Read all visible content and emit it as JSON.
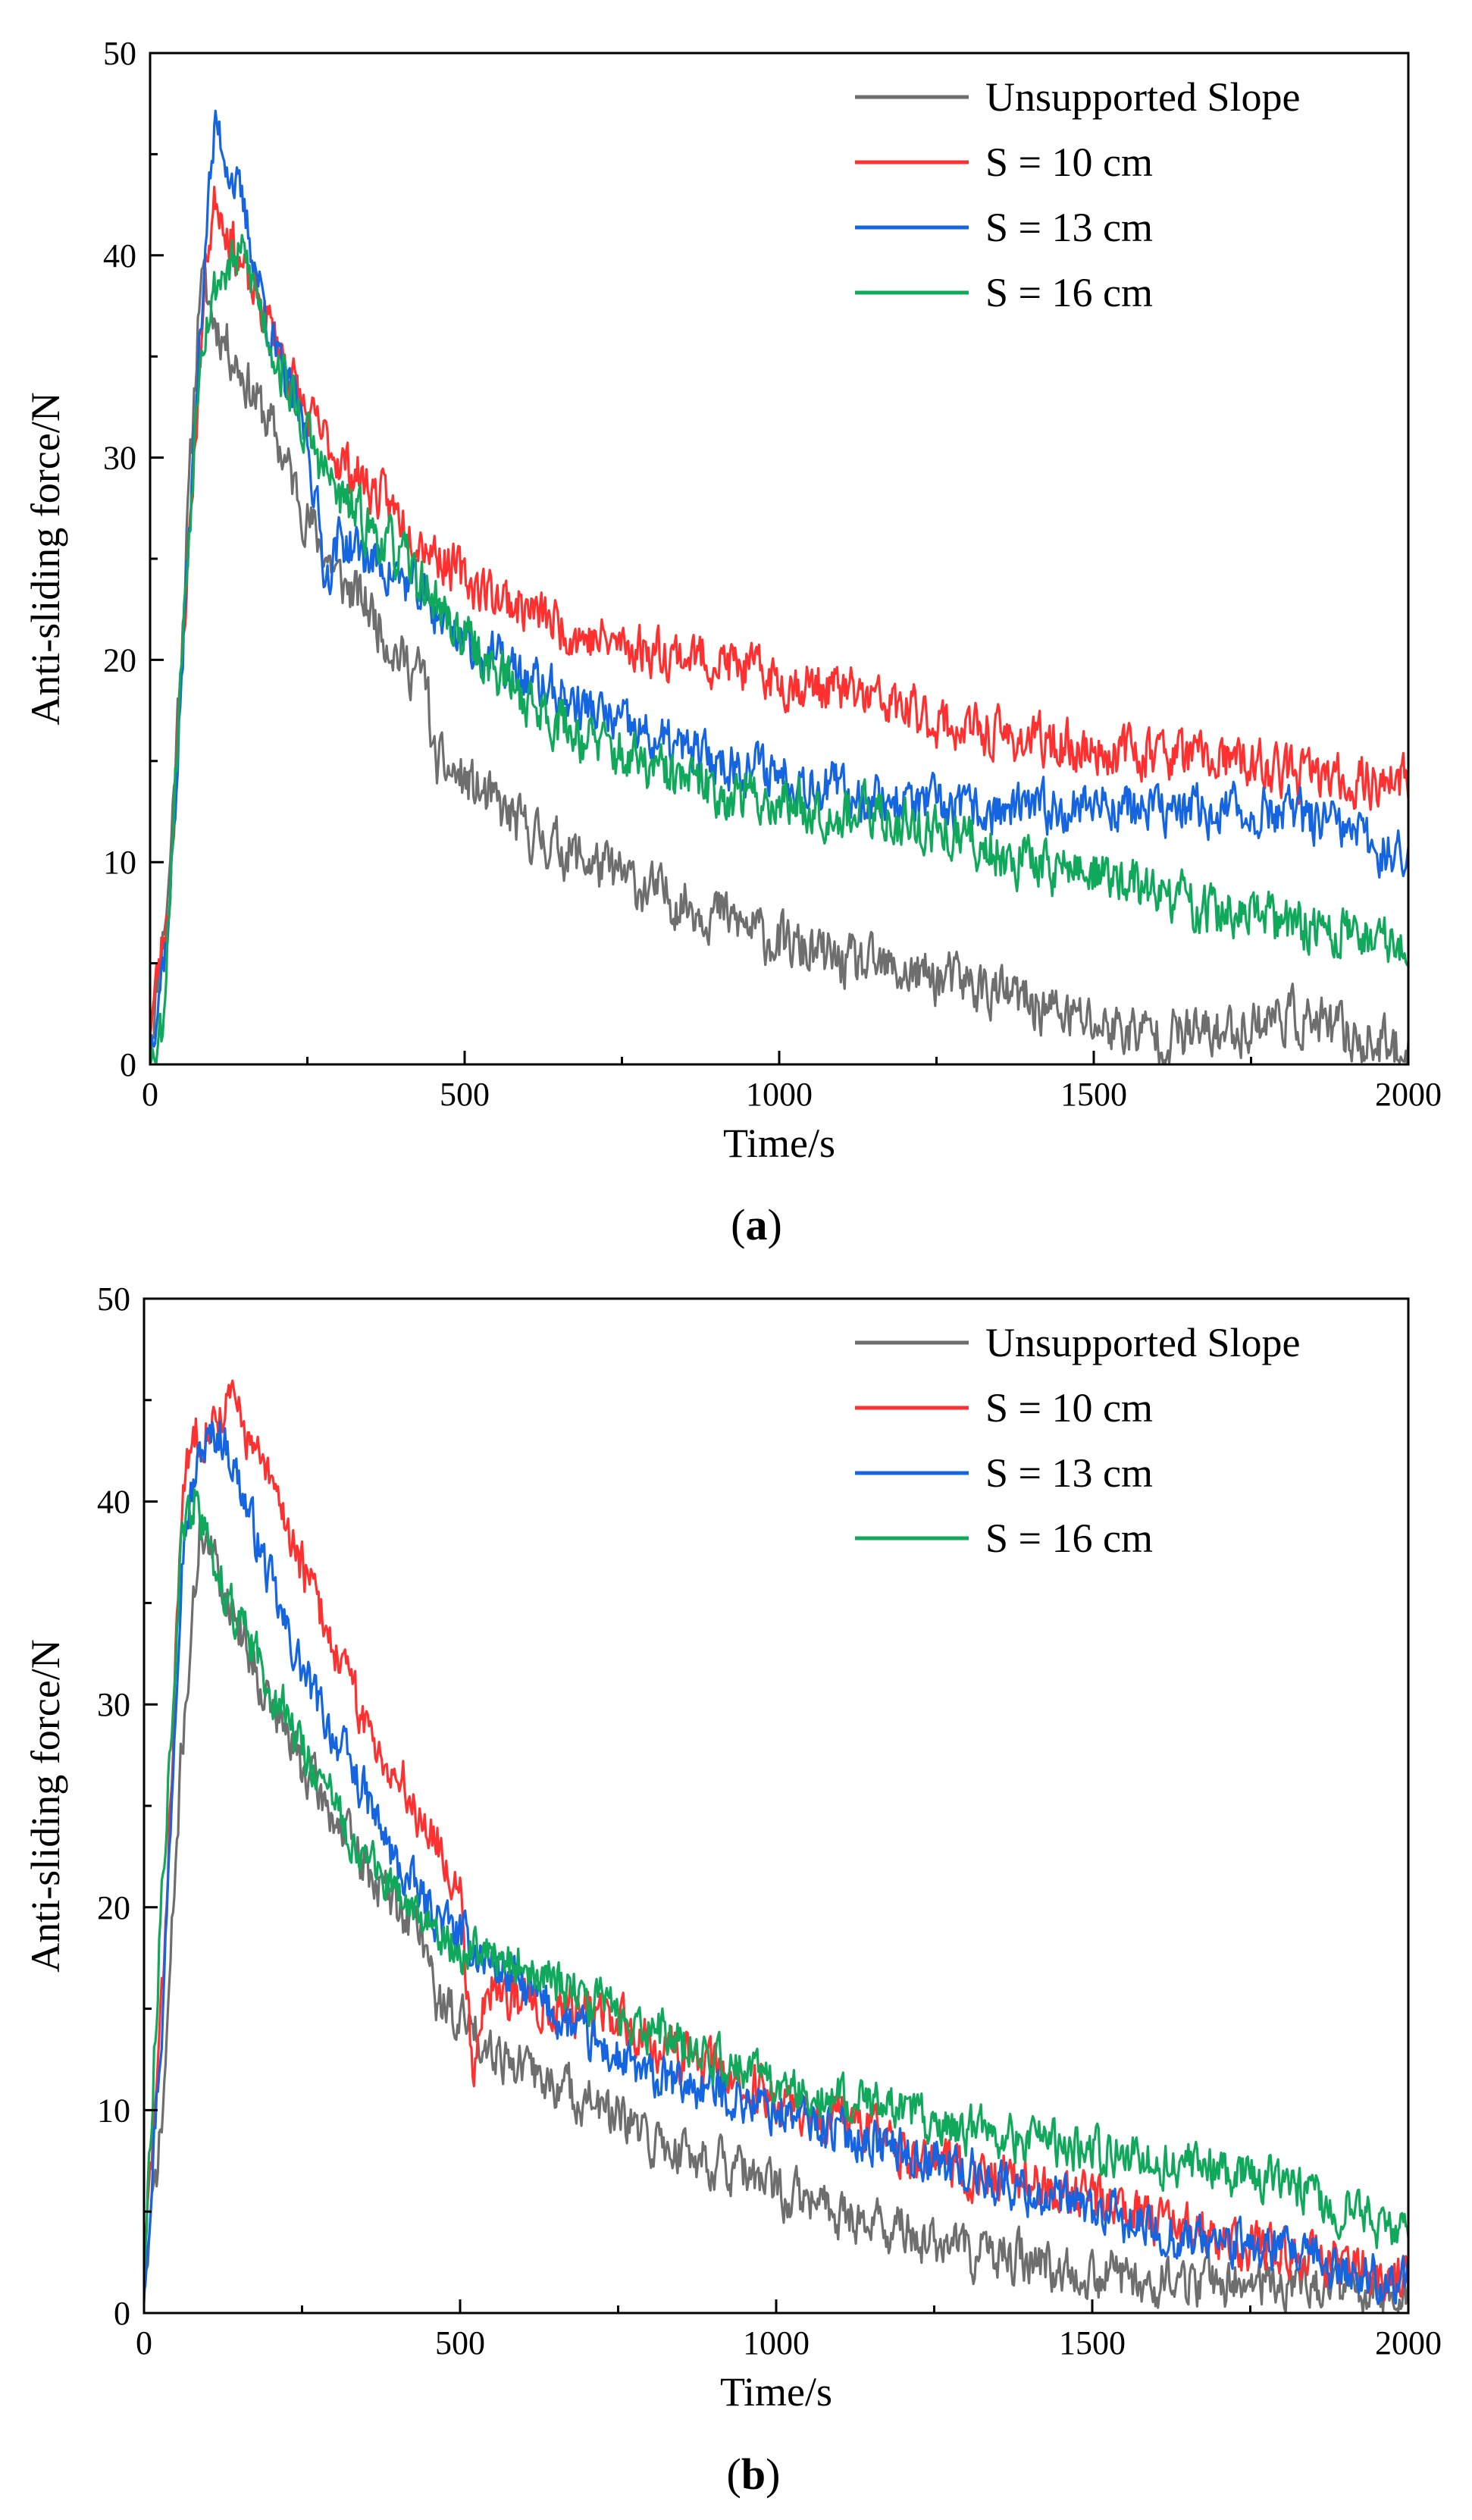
{
  "colors": {
    "unsupported": "#6e6e6e",
    "s10": "#ff3030",
    "s13": "#1565e0",
    "s16": "#10a85a"
  },
  "chart_data": [
    {
      "type": "line",
      "panel_label": "(a)",
      "panel_label_open": "(",
      "panel_label_letter": "a",
      "panel_label_close": ")",
      "xlabel": "Time/s",
      "ylabel": "Anti-sliding force/N",
      "xlim": [
        0,
        2000
      ],
      "ylim": [
        0,
        50
      ],
      "xticks": [
        0,
        500,
        1000,
        1500,
        2000
      ],
      "yticks": [
        0,
        10,
        20,
        30,
        40,
        50
      ],
      "legend_position": "top-right",
      "grid": false,
      "series": [
        {
          "name": "Unsupported Slope",
          "color_key": "unsupported",
          "noise": 1.6,
          "seed": 11,
          "points": [
            [
              0,
              1
            ],
            [
              30,
              9
            ],
            [
              60,
              27
            ],
            [
              80,
              39
            ],
            [
              100,
              37
            ],
            [
              150,
              34
            ],
            [
              200,
              31
            ],
            [
              250,
              27
            ],
            [
              300,
              24
            ],
            [
              350,
              22.5
            ],
            [
              400,
              20
            ],
            [
              440,
              19
            ],
            [
              450,
              15
            ],
            [
              500,
              14
            ],
            [
              600,
              11.5
            ],
            [
              700,
              10
            ],
            [
              800,
              8.5
            ],
            [
              900,
              7.5
            ],
            [
              1000,
              6
            ],
            [
              1100,
              5
            ],
            [
              1200,
              4.5
            ],
            [
              1300,
              4
            ],
            [
              1400,
              3
            ],
            [
              1500,
              2
            ],
            [
              1600,
              1.5
            ],
            [
              1700,
              1.5
            ],
            [
              1800,
              2.5
            ],
            [
              1900,
              1.5
            ],
            [
              2000,
              0.5
            ]
          ]
        },
        {
          "name": "S = 10 cm",
          "color_key": "s10",
          "noise": 1.5,
          "seed": 23,
          "points": [
            [
              0,
              2
            ],
            [
              30,
              8
            ],
            [
              60,
              25
            ],
            [
              90,
              40
            ],
            [
              105,
              43
            ],
            [
              150,
              39
            ],
            [
              200,
              36
            ],
            [
              250,
              32
            ],
            [
              300,
              30
            ],
            [
              400,
              27
            ],
            [
              500,
              24
            ],
            [
              600,
              22.5
            ],
            [
              700,
              21
            ],
            [
              800,
              20.5
            ],
            [
              900,
              20
            ],
            [
              1000,
              19
            ],
            [
              1100,
              18.5
            ],
            [
              1200,
              17.5
            ],
            [
              1300,
              16.5
            ],
            [
              1400,
              16
            ],
            [
              1500,
              15.5
            ],
            [
              1600,
              15.5
            ],
            [
              1700,
              15
            ],
            [
              1800,
              14.5
            ],
            [
              1900,
              14
            ],
            [
              2000,
              14
            ]
          ]
        },
        {
          "name": "S = 13 cm",
          "color_key": "s13",
          "noise": 1.5,
          "seed": 37,
          "points": [
            [
              0,
              1
            ],
            [
              30,
              7
            ],
            [
              60,
              25
            ],
            [
              90,
              42
            ],
            [
              105,
              46.5
            ],
            [
              150,
              42
            ],
            [
              200,
              35
            ],
            [
              250,
              31
            ],
            [
              280,
              24
            ],
            [
              300,
              26
            ],
            [
              400,
              24
            ],
            [
              500,
              21
            ],
            [
              600,
              19
            ],
            [
              700,
              17.5
            ],
            [
              800,
              16
            ],
            [
              900,
              15
            ],
            [
              1000,
              14.5
            ],
            [
              1100,
              13.5
            ],
            [
              1200,
              13
            ],
            [
              1300,
              12.5
            ],
            [
              1400,
              12.5
            ],
            [
              1500,
              13
            ],
            [
              1600,
              12.5
            ],
            [
              1700,
              12.5
            ],
            [
              1800,
              12.5
            ],
            [
              1900,
              11.5
            ],
            [
              2000,
              10
            ]
          ]
        },
        {
          "name": "S = 16 cm",
          "color_key": "s16",
          "noise": 1.6,
          "seed": 53,
          "points": [
            [
              0,
              0.5
            ],
            [
              20,
              2
            ],
            [
              50,
              20
            ],
            [
              80,
              36
            ],
            [
              110,
              39
            ],
            [
              150,
              40
            ],
            [
              200,
              35
            ],
            [
              250,
              31
            ],
            [
              300,
              28
            ],
            [
              400,
              25
            ],
            [
              500,
              21
            ],
            [
              600,
              18
            ],
            [
              700,
              16
            ],
            [
              800,
              14.5
            ],
            [
              900,
              13.5
            ],
            [
              1000,
              13
            ],
            [
              1100,
              12.5
            ],
            [
              1200,
              12
            ],
            [
              1300,
              11
            ],
            [
              1400,
              10
            ],
            [
              1500,
              9.5
            ],
            [
              1600,
              8.5
            ],
            [
              1700,
              7.5
            ],
            [
              1800,
              7
            ],
            [
              1900,
              6.5
            ],
            [
              2000,
              6
            ]
          ]
        }
      ]
    },
    {
      "type": "line",
      "panel_label": "(b)",
      "panel_label_open": "(",
      "panel_label_letter": "b",
      "panel_label_close": ")",
      "xlabel": "Time/s",
      "ylabel": "Anti-sliding force/N",
      "xlim": [
        0,
        2000
      ],
      "ylim": [
        0,
        50
      ],
      "xticks": [
        0,
        500,
        1000,
        1500,
        2000
      ],
      "yticks": [
        0,
        10,
        20,
        30,
        40,
        50
      ],
      "legend_position": "top-right",
      "grid": false,
      "series": [
        {
          "name": "Unsupported Slope",
          "color_key": "unsupported",
          "noise": 1.5,
          "seed": 71,
          "points": [
            [
              0,
              1
            ],
            [
              30,
              10
            ],
            [
              60,
              28
            ],
            [
              90,
              39
            ],
            [
              110,
              37
            ],
            [
              150,
              34
            ],
            [
              200,
              30
            ],
            [
              250,
              27
            ],
            [
              300,
              24.5
            ],
            [
              350,
              22
            ],
            [
              400,
              20
            ],
            [
              440,
              19
            ],
            [
              460,
              15.5
            ],
            [
              500,
              14.5
            ],
            [
              600,
              12
            ],
            [
              700,
              10.5
            ],
            [
              800,
              8.5
            ],
            [
              900,
              7.5
            ],
            [
              1000,
              6
            ],
            [
              1100,
              5
            ],
            [
              1200,
              4
            ],
            [
              1300,
              3
            ],
            [
              1400,
              2.5
            ],
            [
              1500,
              2
            ],
            [
              1600,
              1.5
            ],
            [
              1700,
              1.5
            ],
            [
              1800,
              1.5
            ],
            [
              1900,
              1
            ],
            [
              2000,
              0.5
            ]
          ]
        },
        {
          "name": "S = 10 cm",
          "color_key": "s10",
          "noise": 1.5,
          "seed": 83,
          "points": [
            [
              0,
              2
            ],
            [
              30,
              16
            ],
            [
              60,
              40
            ],
            [
              80,
              43.5
            ],
            [
              110,
              44
            ],
            [
              140,
              45
            ],
            [
              180,
              42
            ],
            [
              220,
              39.5
            ],
            [
              260,
              36
            ],
            [
              300,
              33
            ],
            [
              350,
              29
            ],
            [
              400,
              26.5
            ],
            [
              450,
              24
            ],
            [
              500,
              21
            ],
            [
              520,
              12
            ],
            [
              540,
              16
            ],
            [
              600,
              15.5
            ],
            [
              700,
              15
            ],
            [
              800,
              13.5
            ],
            [
              900,
              12
            ],
            [
              1000,
              10.5
            ],
            [
              1100,
              9.5
            ],
            [
              1200,
              8
            ],
            [
              1300,
              7
            ],
            [
              1400,
              6.5
            ],
            [
              1500,
              5.5
            ],
            [
              1600,
              4.5
            ],
            [
              1700,
              3.5
            ],
            [
              1800,
              3
            ],
            [
              1900,
              2.5
            ],
            [
              2000,
              1.5
            ]
          ]
        },
        {
          "name": "S = 13 cm",
          "color_key": "s13",
          "noise": 1.4,
          "seed": 97,
          "points": [
            [
              0,
              1.5
            ],
            [
              30,
              15
            ],
            [
              60,
              38
            ],
            [
              90,
              42.5
            ],
            [
              120,
              43.5
            ],
            [
              140,
              42
            ],
            [
              180,
              38
            ],
            [
              220,
              34
            ],
            [
              260,
              31
            ],
            [
              300,
              28.5
            ],
            [
              350,
              25.5
            ],
            [
              400,
              22
            ],
            [
              450,
              20
            ],
            [
              500,
              18.5
            ],
            [
              600,
              16
            ],
            [
              700,
              13.5
            ],
            [
              800,
              11.5
            ],
            [
              900,
              11
            ],
            [
              1000,
              10
            ],
            [
              1100,
              9
            ],
            [
              1200,
              8
            ],
            [
              1300,
              7
            ],
            [
              1400,
              6
            ],
            [
              1500,
              5
            ],
            [
              1600,
              4
            ],
            [
              1700,
              3.5
            ],
            [
              1800,
              3
            ],
            [
              1900,
              2
            ],
            [
              2000,
              1.5
            ]
          ]
        },
        {
          "name": "S = 16 cm",
          "color_key": "s16",
          "noise": 1.4,
          "seed": 113,
          "points": [
            [
              0,
              2
            ],
            [
              30,
              22
            ],
            [
              60,
              38
            ],
            [
              80,
              40
            ],
            [
              110,
              37
            ],
            [
              150,
              34
            ],
            [
              200,
              31
            ],
            [
              250,
              28
            ],
            [
              300,
              25
            ],
            [
              350,
              22.5
            ],
            [
              400,
              20.5
            ],
            [
              450,
              19
            ],
            [
              500,
              18
            ],
            [
              600,
              17
            ],
            [
              700,
              15.5
            ],
            [
              800,
              14
            ],
            [
              900,
              12.5
            ],
            [
              1000,
              11.5
            ],
            [
              1100,
              10.5
            ],
            [
              1200,
              10
            ],
            [
              1300,
              9
            ],
            [
              1400,
              8.5
            ],
            [
              1500,
              8
            ],
            [
              1600,
              7.5
            ],
            [
              1700,
              7
            ],
            [
              1800,
              6.5
            ],
            [
              1900,
              5
            ],
            [
              2000,
              4
            ]
          ]
        }
      ]
    }
  ]
}
